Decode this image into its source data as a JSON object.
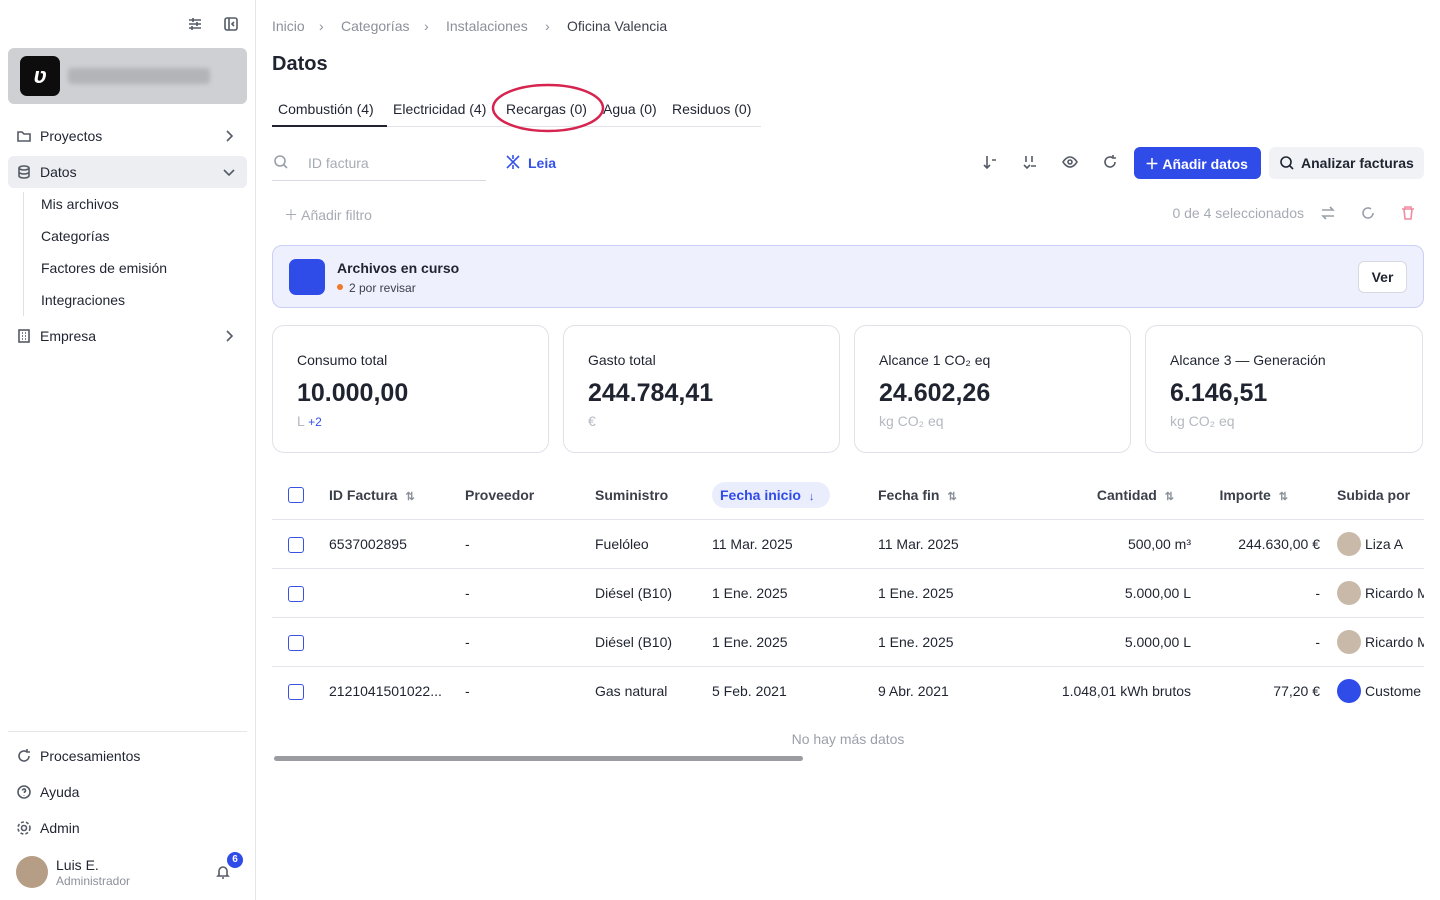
{
  "sidebar": {
    "nav": [
      {
        "label": "Proyectos"
      },
      {
        "label": "Datos",
        "children": [
          "Mis archivos",
          "Categorías",
          "Factores de emisión",
          "Integraciones"
        ]
      },
      {
        "label": "Empresa"
      }
    ],
    "bottom": [
      "Procesamientos",
      "Ayuda",
      "Admin"
    ],
    "user": {
      "name": "Luis E.",
      "role": "Administrador",
      "notifications": 6
    }
  },
  "breadcrumb": [
    "Inicio",
    "Categorías",
    "Instalaciones",
    "Oficina Valencia"
  ],
  "page_title": "Datos",
  "tabs": [
    "Combustión (4)",
    "Electricidad (4)",
    "Recargas (0)",
    "Agua (0)",
    "Residuos (0)"
  ],
  "toolbar": {
    "search_placeholder": "ID factura",
    "assistant": "Leia",
    "add_button": "Añadir datos",
    "analyze_button": "Analizar facturas",
    "add_filter": "Añadir filtro",
    "selection": "0 de 4 seleccionados"
  },
  "banner": {
    "title": "Archivos en curso",
    "subtitle": "2 por revisar",
    "button": "Ver"
  },
  "cards": [
    {
      "title": "Consumo total",
      "value": "10.000,00",
      "unit": "L",
      "extra": "+2"
    },
    {
      "title": "Gasto total",
      "value": "244.784,41",
      "unit": "€"
    },
    {
      "title": "Alcance 1 CO₂ eq",
      "value": "24.602,26",
      "unit": "kg CO₂ eq"
    },
    {
      "title": "Alcance 3 — Generación",
      "value": "6.146,51",
      "unit": "kg CO₂ eq"
    }
  ],
  "table": {
    "columns": [
      "ID Factura",
      "Proveedor",
      "Suministro",
      "Fecha inicio",
      "Fecha fin",
      "Cantidad",
      "Importe",
      "Subida por"
    ],
    "rows": [
      [
        "6537002895",
        "-",
        "Fuelóleo",
        "11 Mar. 2025",
        "11 Mar. 2025",
        "500,00 m³",
        "244.630,00 €",
        "Liza A"
      ],
      [
        "",
        "-",
        "Diésel (B10)",
        "1 Ene. 2025",
        "1 Ene. 2025",
        "5.000,00 L",
        "-",
        "Ricardo M"
      ],
      [
        "",
        "-",
        "Diésel (B10)",
        "1 Ene. 2025",
        "1 Ene. 2025",
        "5.000,00 L",
        "-",
        "Ricardo M"
      ],
      [
        "2121041501022...",
        "-",
        "Gas natural",
        "5 Feb. 2021",
        "9 Abr. 2021",
        "1.048,01 kWh brutos",
        "77,20 €",
        "Custome"
      ]
    ],
    "footer": "No hay más datos"
  }
}
